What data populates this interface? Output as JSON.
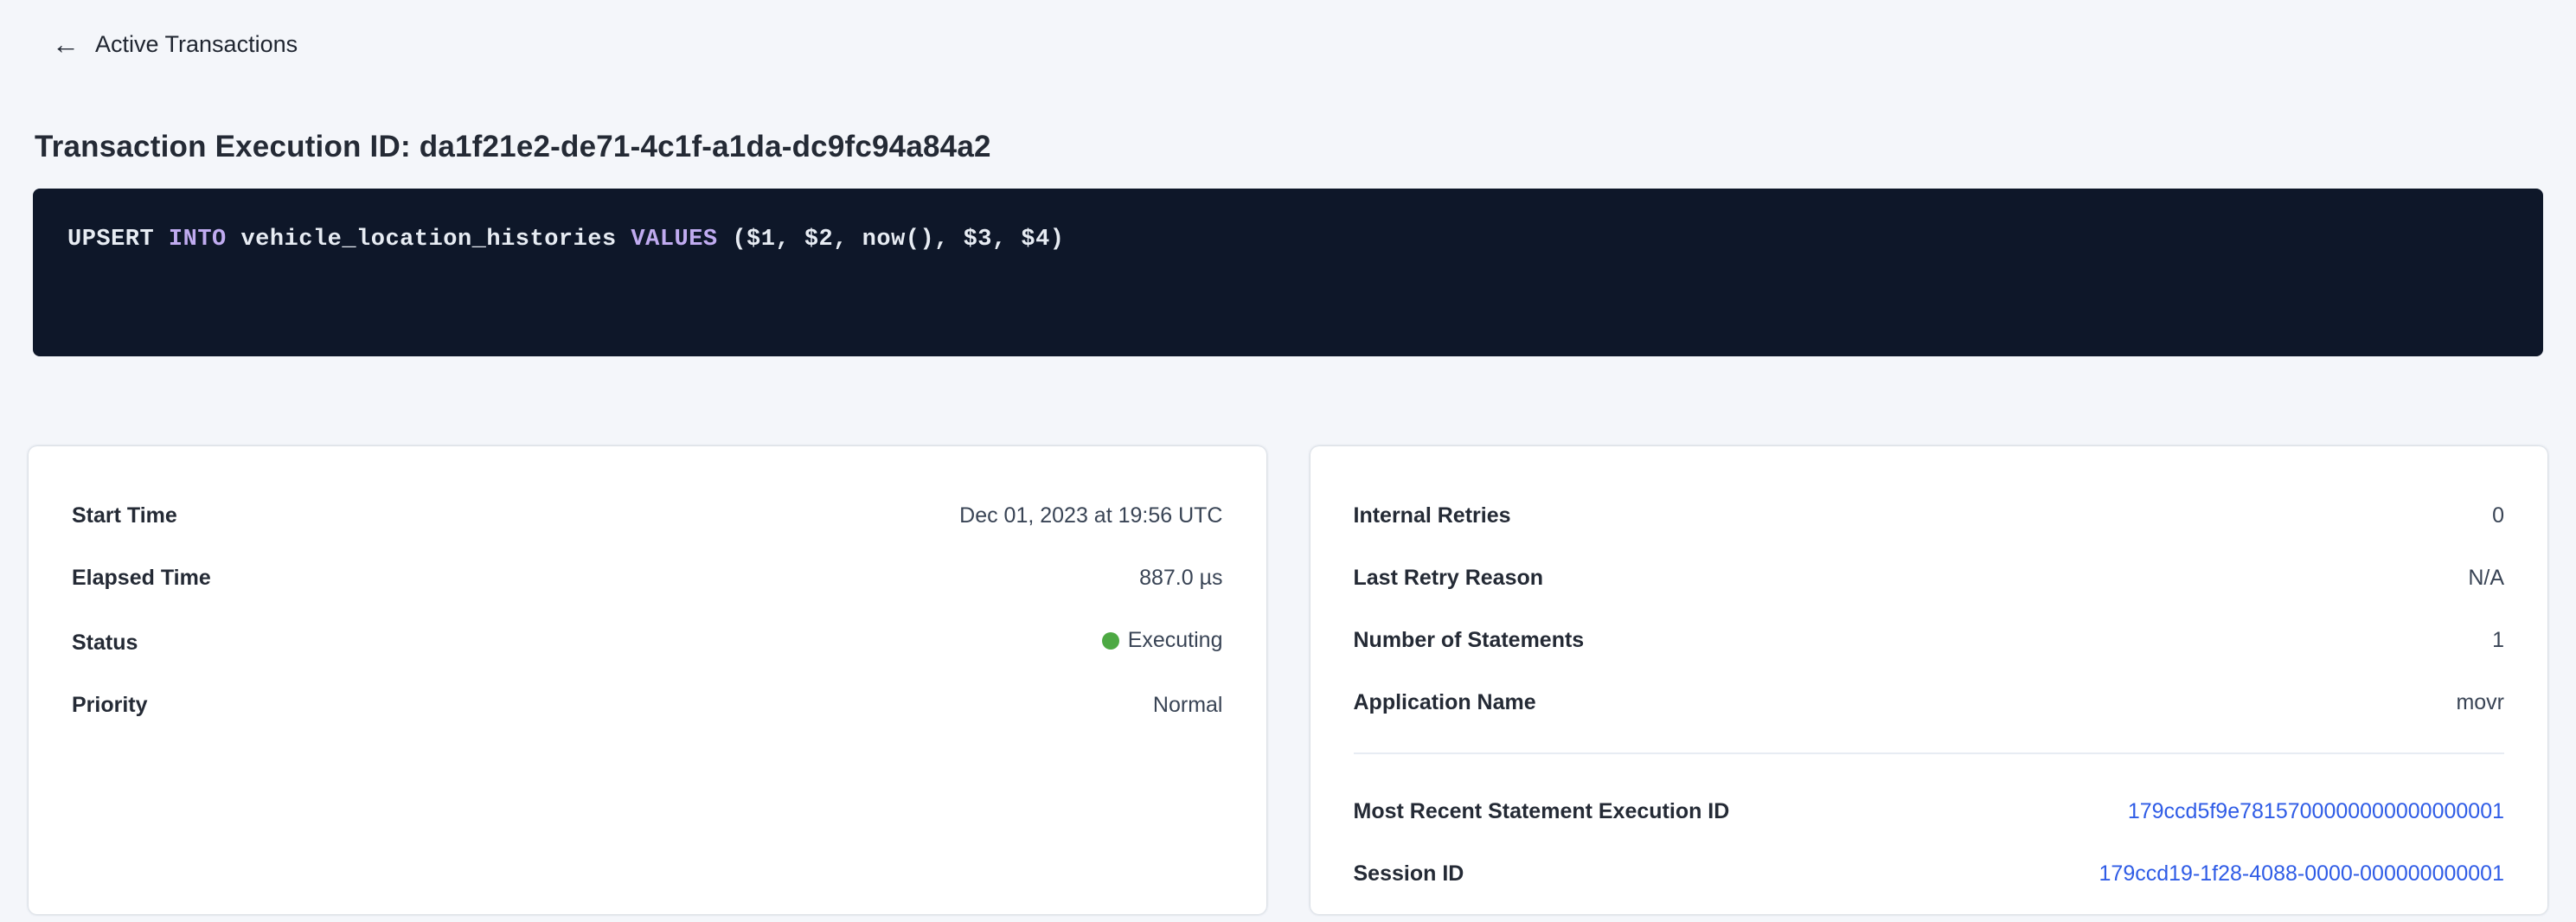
{
  "colors": {
    "page_background": "#f4f6fa",
    "card_background": "#ffffff",
    "code_background": "#0e1729",
    "code_text": "#e7ecf3",
    "code_keyword": "#c0abf0",
    "link": "#2f5ce6",
    "status_executing_dot": "#4da943",
    "heading_text": "#242a35"
  },
  "header": {
    "back_icon": "arrow-left",
    "back_label": "Active Transactions",
    "page_title": "Transaction Execution ID: da1f21e2-de71-4c1f-a1da-dc9fc94a84a2"
  },
  "sql_statement": {
    "full_text": "UPSERT INTO vehicle_location_histories VALUES ($1, $2, now(), $3, $4)",
    "tokens": [
      {
        "text": "UPSERT ",
        "kind": "plain"
      },
      {
        "text": "INTO ",
        "kind": "keyword"
      },
      {
        "text": "vehicle_location_histories ",
        "kind": "plain"
      },
      {
        "text": "VALUES ",
        "kind": "keyword"
      },
      {
        "text": "($1, $2, now(), $3, $4)",
        "kind": "plain"
      }
    ]
  },
  "overview_card": {
    "rows": [
      {
        "label": "Start Time",
        "value": "Dec 01, 2023 at 19:56 UTC"
      },
      {
        "label": "Elapsed Time",
        "value": "887.0 µs"
      },
      {
        "label": "Status",
        "value": "Executing"
      },
      {
        "label": "Priority",
        "value": "Normal"
      }
    ]
  },
  "details_card": {
    "rows": [
      {
        "label": "Internal Retries",
        "value": "0"
      },
      {
        "label": "Last Retry Reason",
        "value": "N/A"
      },
      {
        "label": "Number of Statements",
        "value": "1"
      },
      {
        "label": "Application Name",
        "value": "movr"
      }
    ],
    "link_rows": [
      {
        "label": "Most Recent Statement Execution ID",
        "value": "179ccd5f9e7815700000000000000001"
      },
      {
        "label": "Session ID",
        "value": "179ccd19-1f28-4088-0000-000000000001"
      }
    ]
  }
}
